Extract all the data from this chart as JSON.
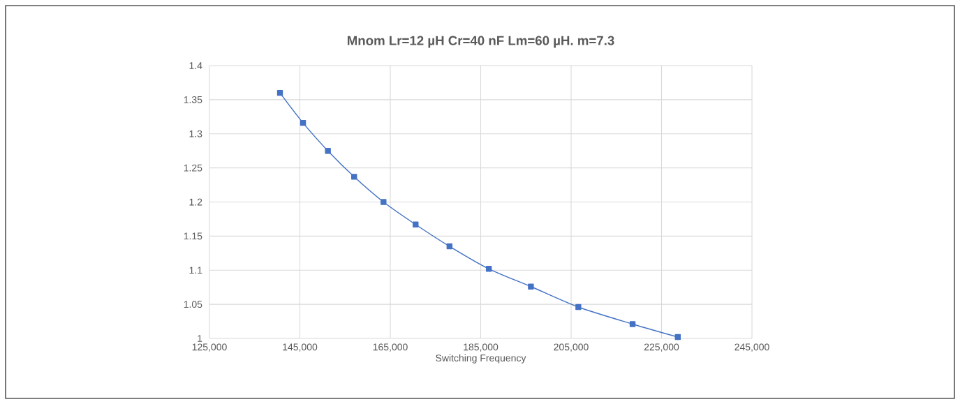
{
  "chart_data": {
    "type": "line",
    "title": "Mnom  Lr=12 µH  Cr=40 nF  Lm=60 µH. m=7.3",
    "xlabel": "Switching Frequency",
    "x": [
      140600,
      145700,
      151200,
      157000,
      163500,
      170600,
      178100,
      186800,
      196100,
      206600,
      218600,
      228600
    ],
    "series": [
      {
        "color": "#4472c4",
        "values": [
          1.36,
          1.316,
          1.275,
          1.237,
          1.2,
          1.167,
          1.135,
          1.102,
          1.076,
          1.046,
          1.021,
          1.002
        ]
      }
    ],
    "xlim": [
      125000,
      245000
    ],
    "xticks": [
      {
        "value": 125000,
        "label": "125,000"
      },
      {
        "value": 145000,
        "label": "145,000"
      },
      {
        "value": 165000,
        "label": "165,000"
      },
      {
        "value": 185000,
        "label": "185,000"
      },
      {
        "value": 205000,
        "label": "205,000"
      },
      {
        "value": 225000,
        "label": "225,000"
      },
      {
        "value": 245000,
        "label": "245,000"
      }
    ],
    "ylim": [
      1,
      1.4
    ],
    "yticks": [
      1,
      1.05,
      1.1,
      1.15,
      1.2,
      1.25,
      1.3,
      1.35,
      1.4
    ],
    "grid": true,
    "marker": "square",
    "line_style": "solid",
    "legend": false
  }
}
